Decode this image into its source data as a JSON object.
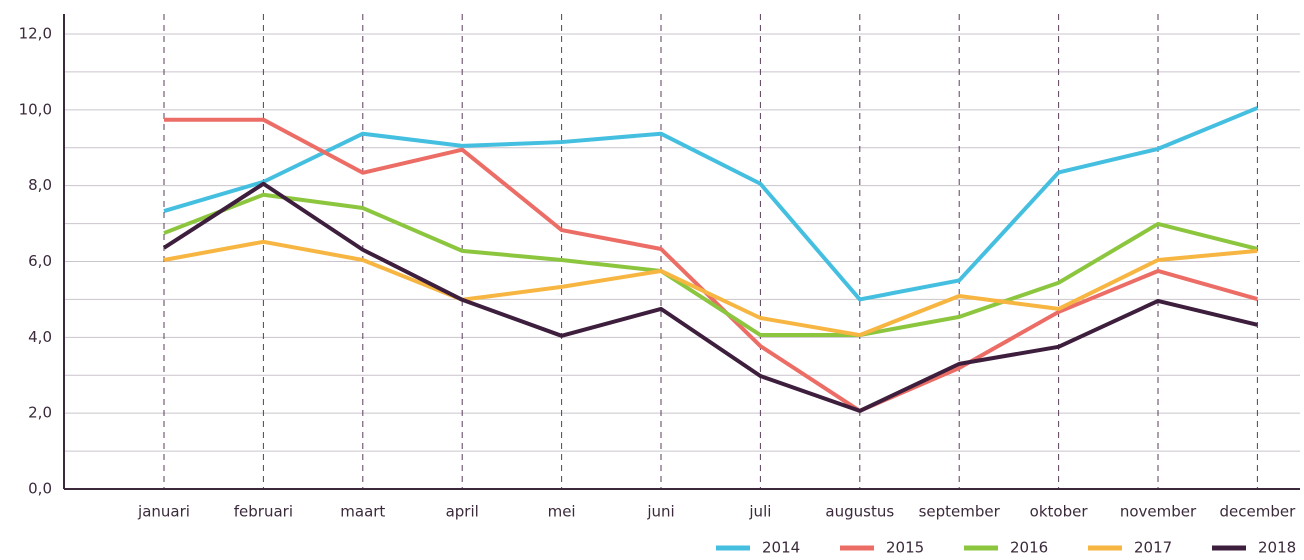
{
  "chart_data": {
    "type": "line",
    "categories": [
      "januari",
      "februari",
      "maart",
      "april",
      "mei",
      "juni",
      "juli",
      "augustus",
      "september",
      "oktober",
      "november",
      "december"
    ],
    "series": [
      {
        "name": "2014",
        "color": "#45bfe0",
        "values": [
          7.33,
          8.1,
          9.37,
          9.05,
          9.15,
          9.37,
          8.05,
          5.0,
          5.5,
          8.35,
          8.97,
          10.05
        ]
      },
      {
        "name": "2015",
        "color": "#ec6d65",
        "values": [
          9.74,
          9.74,
          8.34,
          8.95,
          6.83,
          6.33,
          3.77,
          2.06,
          3.19,
          4.67,
          5.75,
          5.01
        ]
      },
      {
        "name": "2016",
        "color": "#8cc63f",
        "values": [
          6.75,
          7.76,
          7.41,
          6.28,
          6.04,
          5.75,
          4.06,
          4.06,
          4.54,
          5.44,
          6.99,
          6.33
        ]
      },
      {
        "name": "2017",
        "color": "#f7b542",
        "values": [
          6.04,
          6.52,
          6.04,
          4.99,
          5.33,
          5.75,
          4.51,
          4.06,
          5.09,
          4.75,
          6.04,
          6.28
        ]
      },
      {
        "name": "2018",
        "color": "#3d1f3d",
        "values": [
          6.36,
          8.05,
          6.31,
          4.99,
          4.04,
          4.75,
          2.98,
          2.06,
          3.3,
          3.75,
          4.96,
          4.33
        ]
      }
    ],
    "ylim": [
      0,
      12
    ],
    "yticks": [
      {
        "value": 0,
        "label": "0,0"
      },
      {
        "value": 2,
        "label": "2,0"
      },
      {
        "value": 4,
        "label": "4,0"
      },
      {
        "value": 6,
        "label": "6,0"
      },
      {
        "value": 8,
        "label": "8,0"
      },
      {
        "value": 10,
        "label": "10,0"
      },
      {
        "value": 12,
        "label": "12,0"
      }
    ],
    "minor_grid": [
      1,
      3,
      5,
      7,
      9,
      11
    ],
    "grid": true,
    "legend": "bottom-right"
  }
}
